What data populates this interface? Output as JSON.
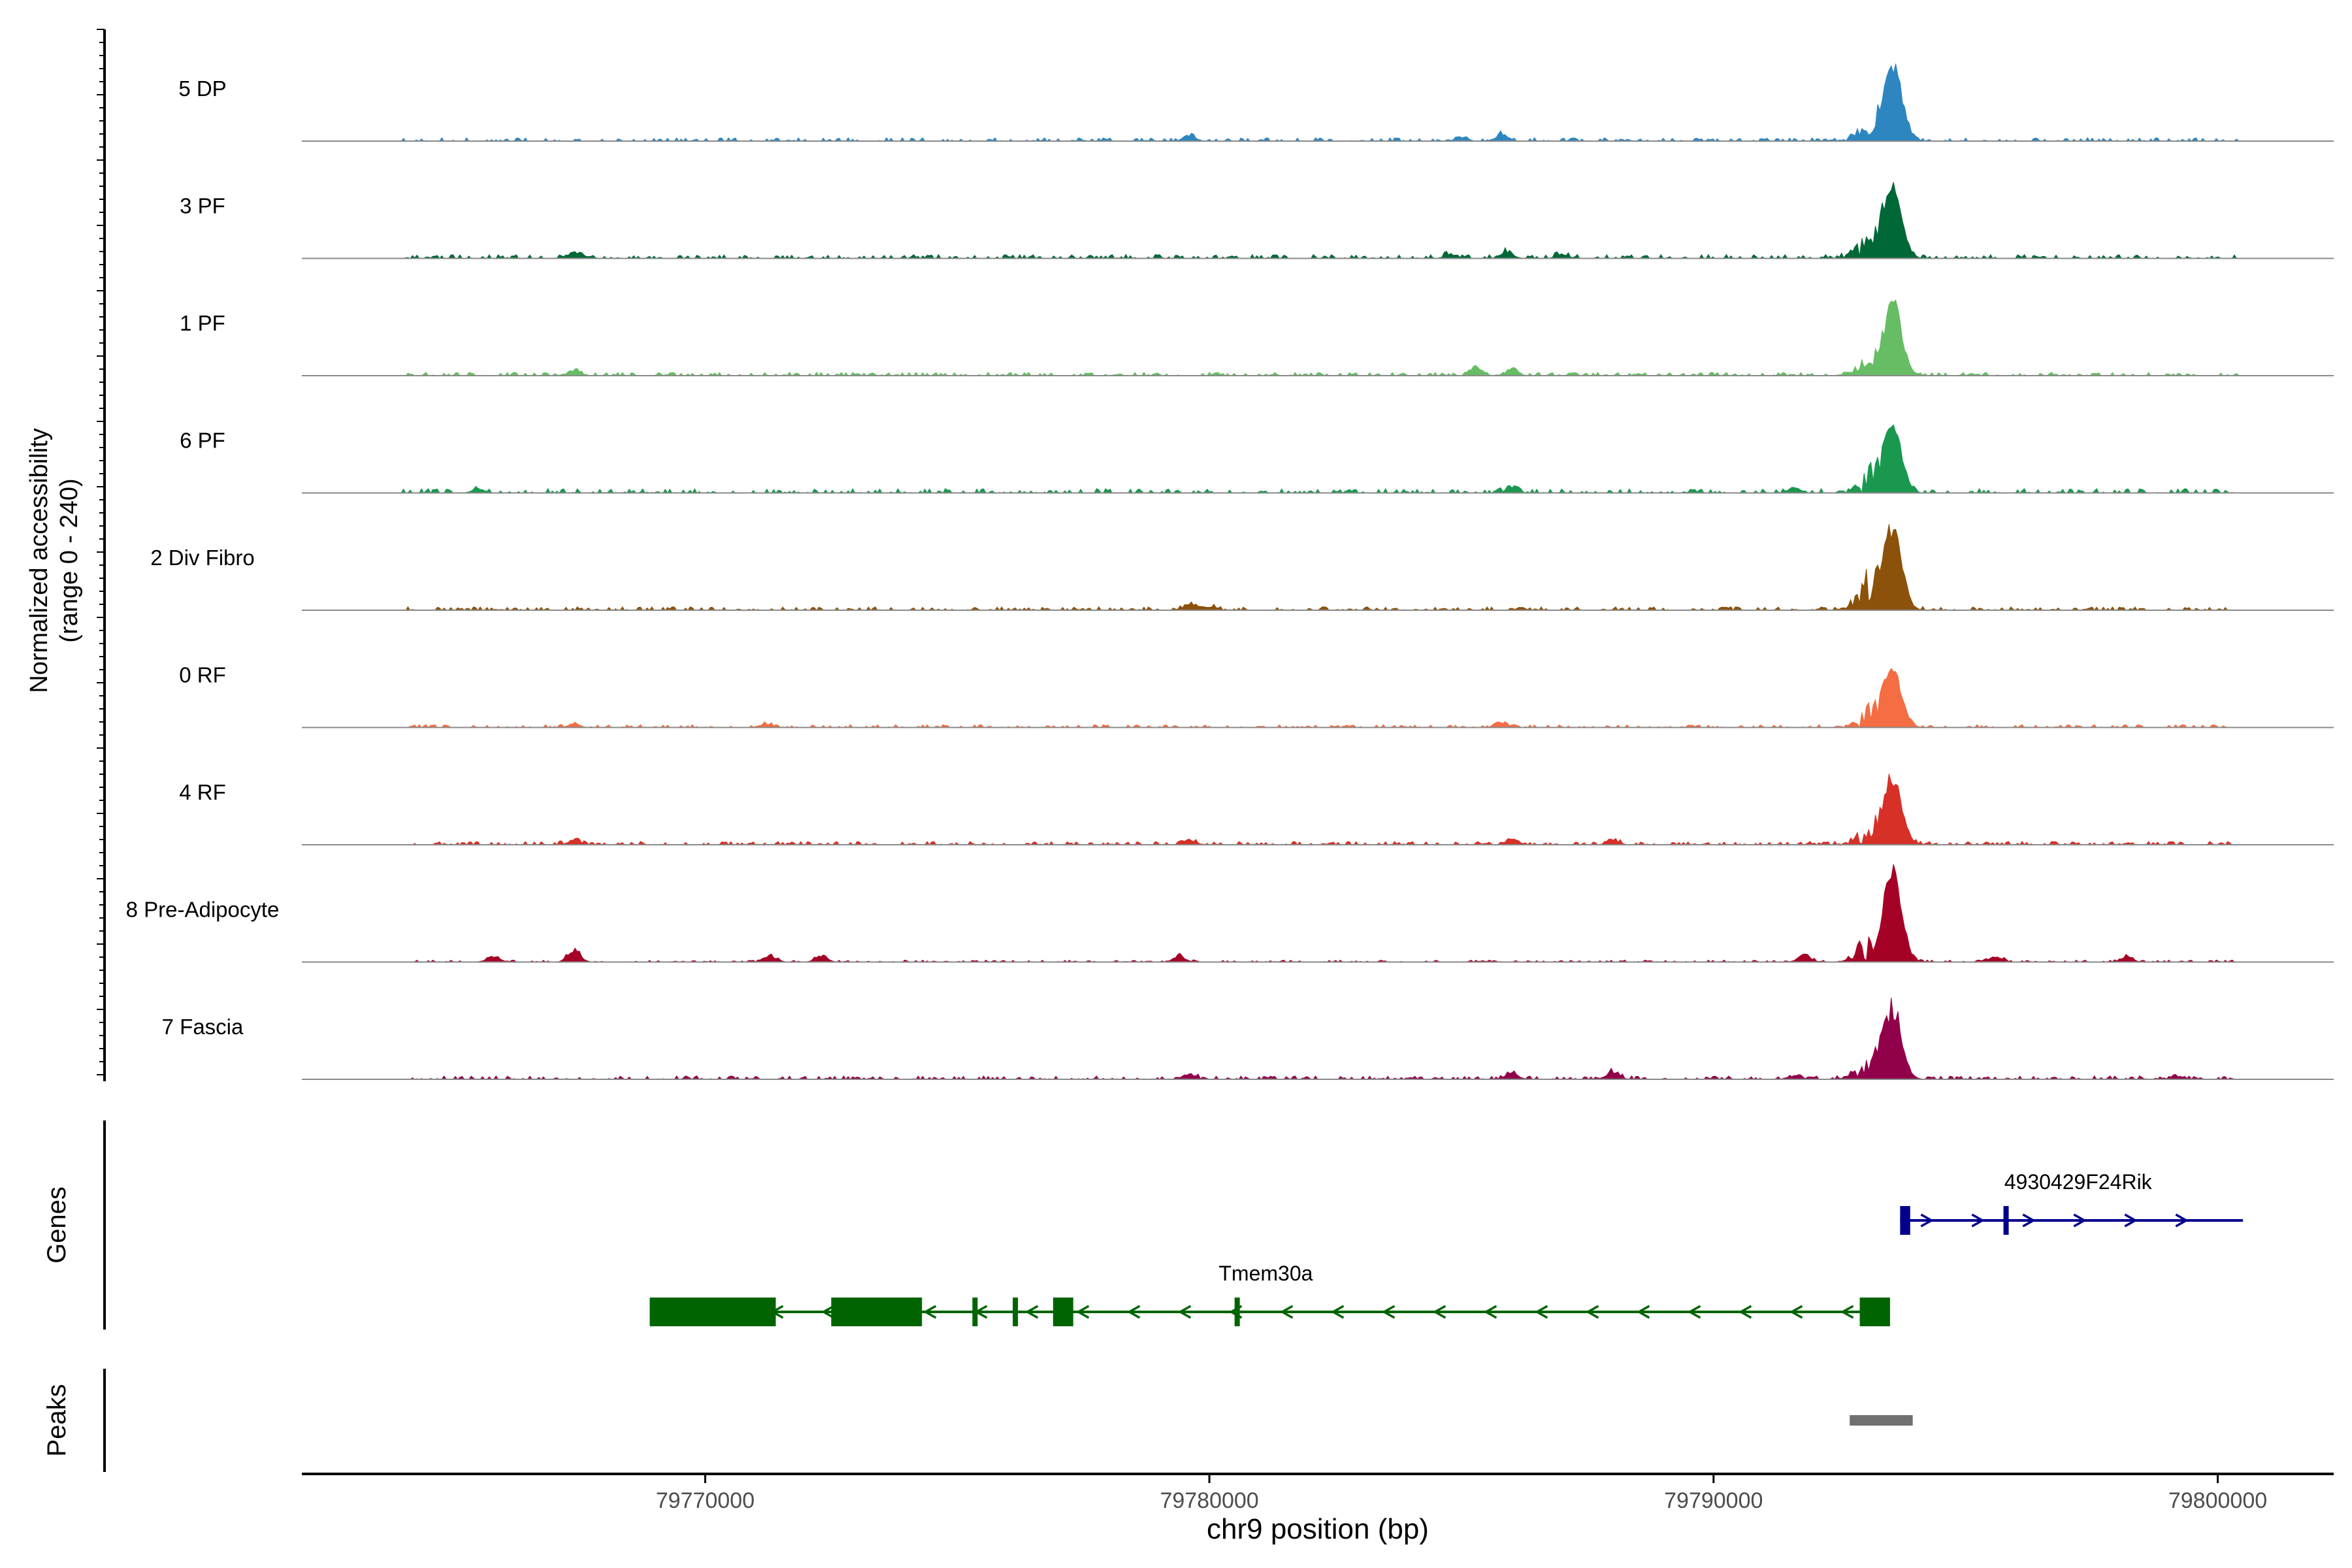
{
  "chart_data": {
    "type": "area",
    "chromosome": "chr9",
    "region": [
      79762000,
      79802300
    ],
    "y_axis_label": "Normalized accessibility",
    "y_axis_sublabel": "(range 0 - 240)",
    "x_axis_label": "chr9 position (bp)",
    "x_ticks": [
      {
        "value": 79770000,
        "label": "79770000"
      },
      {
        "value": 79780000,
        "label": "79780000"
      },
      {
        "value": 79790000,
        "label": "79790000"
      },
      {
        "value": 79800000,
        "label": "79800000"
      }
    ],
    "tracks": [
      {
        "name": "5 DP",
        "color": "#2E86C1",
        "peak": 0.85,
        "shoulder": 0.18,
        "noise": 0.035,
        "bumps": [
          {
            "x": 79779600,
            "h": 0.07
          },
          {
            "x": 79785800,
            "h": 0.08
          },
          {
            "x": 79785000,
            "h": 0.05
          }
        ]
      },
      {
        "name": "3 PF",
        "color": "#006837",
        "peak": 0.8,
        "shoulder": 0.25,
        "noise": 0.04,
        "bumps": [
          {
            "x": 79767400,
            "h": 0.08
          },
          {
            "x": 79785900,
            "h": 0.09
          },
          {
            "x": 79784800,
            "h": 0.05
          },
          {
            "x": 79787000,
            "h": 0.05
          }
        ]
      },
      {
        "name": "1 PF",
        "color": "#66BD63",
        "peak": 0.82,
        "shoulder": 0.2,
        "noise": 0.035,
        "bumps": [
          {
            "x": 79767400,
            "h": 0.07
          },
          {
            "x": 79785300,
            "h": 0.09
          },
          {
            "x": 79786000,
            "h": 0.08
          }
        ]
      },
      {
        "name": "6 PF",
        "color": "#1A9850",
        "peak": 0.72,
        "shoulder": 0.35,
        "noise": 0.045,
        "bumps": [
          {
            "x": 79765500,
            "h": 0.05
          },
          {
            "x": 79786000,
            "h": 0.06
          },
          {
            "x": 79791600,
            "h": 0.07
          }
        ]
      },
      {
        "name": "2 Div Fibro",
        "color": "#8C510A",
        "peak": 0.92,
        "shoulder": 0.4,
        "noise": 0.035,
        "bumps": [
          {
            "x": 79779600,
            "h": 0.07
          },
          {
            "x": 79780000,
            "h": 0.04
          }
        ]
      },
      {
        "name": "0 RF",
        "color": "#F46D43",
        "peak": 0.62,
        "shoulder": 0.3,
        "noise": 0.03,
        "bumps": [
          {
            "x": 79767400,
            "h": 0.04
          },
          {
            "x": 79771200,
            "h": 0.05
          },
          {
            "x": 79785800,
            "h": 0.05
          }
        ]
      },
      {
        "name": "4 RF",
        "color": "#D73027",
        "peak": 0.72,
        "shoulder": 0.22,
        "noise": 0.035,
        "bumps": [
          {
            "x": 79767400,
            "h": 0.05
          },
          {
            "x": 79779600,
            "h": 0.06
          },
          {
            "x": 79786000,
            "h": 0.08
          },
          {
            "x": 79788000,
            "h": 0.06
          }
        ]
      },
      {
        "name": "8 Pre-Adipocyte",
        "color": "#A50026",
        "peak": 1.0,
        "shoulder": 0.3,
        "noise": 0.02,
        "bumps": [
          {
            "x": 79767400,
            "h": 0.16
          },
          {
            "x": 79765800,
            "h": 0.08
          },
          {
            "x": 79771300,
            "h": 0.07
          },
          {
            "x": 79772300,
            "h": 0.08
          },
          {
            "x": 79779400,
            "h": 0.08
          },
          {
            "x": 79791800,
            "h": 0.09
          },
          {
            "x": 79795600,
            "h": 0.07
          },
          {
            "x": 79798200,
            "h": 0.06
          }
        ]
      },
      {
        "name": "7 Fascia",
        "color": "#91004B",
        "peak": 0.78,
        "shoulder": 0.28,
        "noise": 0.035,
        "bumps": [
          {
            "x": 79779600,
            "h": 0.07
          },
          {
            "x": 79786000,
            "h": 0.07
          },
          {
            "x": 79788000,
            "h": 0.1
          },
          {
            "x": 79791600,
            "h": 0.05
          },
          {
            "x": 79799200,
            "h": 0.04
          }
        ]
      }
    ],
    "peak_center": 79793550,
    "genes_label": "Genes",
    "genes": [
      {
        "name": "4930429F24Rik",
        "strand": "+",
        "color": "#00008B",
        "start": 79793700,
        "end": 79800500,
        "exons": [
          [
            79793700,
            79793900
          ],
          [
            79795750,
            79795850
          ]
        ]
      },
      {
        "name": "Tmem30a",
        "strand": "-",
        "color": "#006400",
        "start": 79768900,
        "end": 79793500,
        "exons": [
          [
            79768900,
            79771400
          ],
          [
            79772500,
            79774300
          ],
          [
            79775300,
            79775400
          ],
          [
            79776100,
            79776150
          ],
          [
            79776900,
            79777300
          ],
          [
            79780500,
            79780600
          ],
          [
            79792900,
            79793500
          ]
        ]
      }
    ],
    "peaks_label": "Peaks",
    "peaks": [
      [
        79792700,
        79793950
      ]
    ]
  }
}
